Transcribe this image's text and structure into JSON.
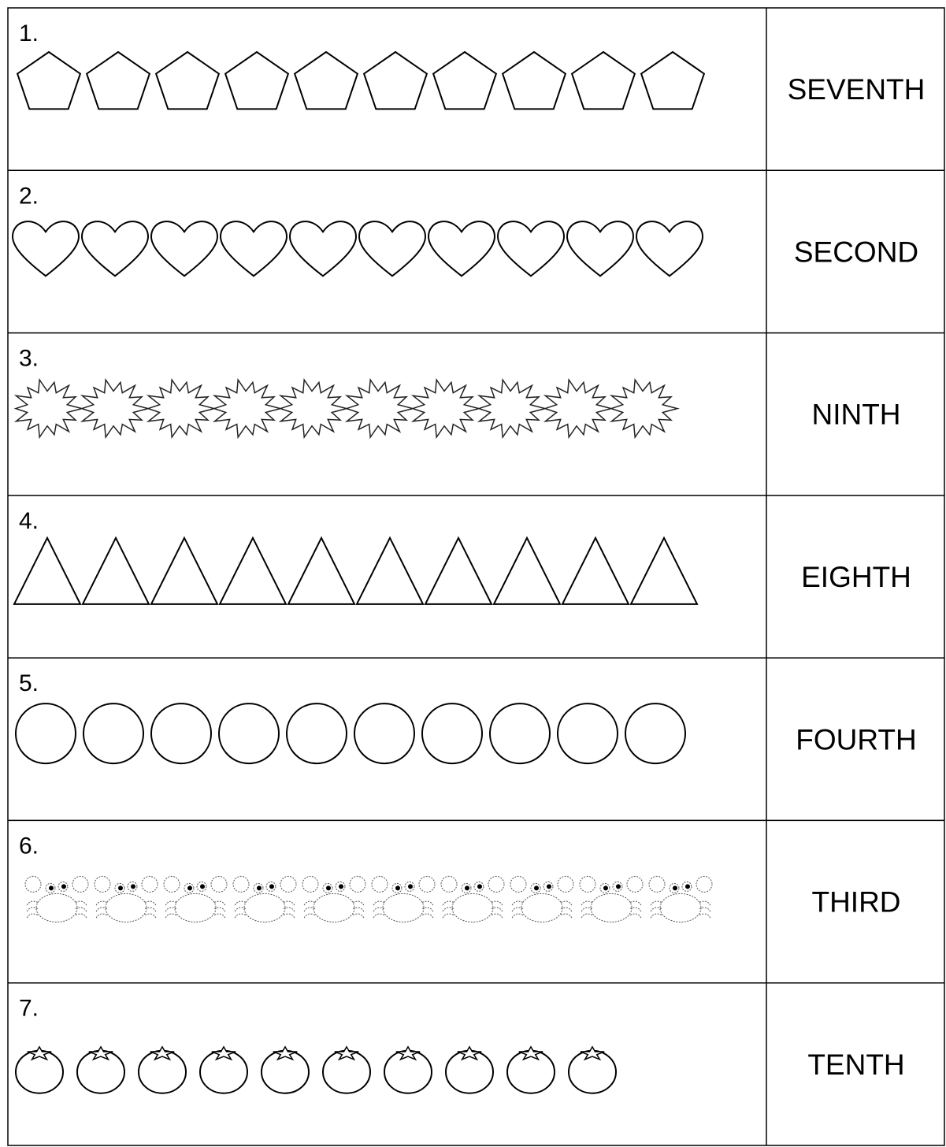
{
  "rows": [
    {
      "number": "1.",
      "word": "SEVENTH"
    },
    {
      "number": "2.",
      "word": "SECOND"
    },
    {
      "number": "3.",
      "word": "NINTH"
    },
    {
      "number": "4.",
      "word": "EIGHTH"
    },
    {
      "number": "5.",
      "word": "FOURTH"
    },
    {
      "number": "6.",
      "word": "THIRD"
    },
    {
      "number": "7.",
      "word": "TENTH"
    }
  ]
}
